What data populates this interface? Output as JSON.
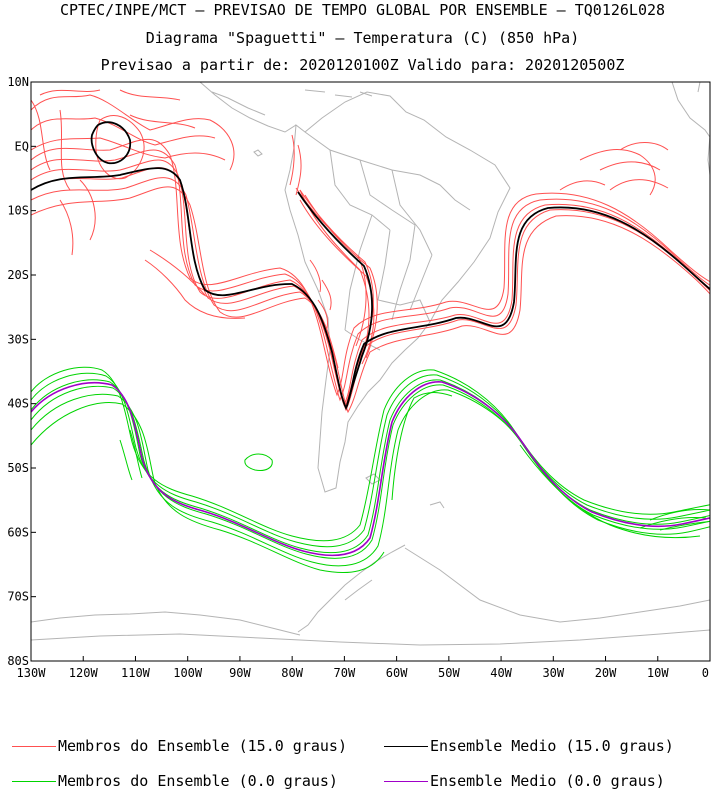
{
  "titles": {
    "line1": "CPTEC/INPE/MCT – PREVISAO DE TEMPO GLOBAL POR ENSEMBLE – TQ0126L028",
    "line2": "Diagrama \"Spaguetti\" – Temperatura (C) (850 hPa)",
    "line3": "Previsao a partir de: 2020120100Z  Valido para: 2020120500Z"
  },
  "map": {
    "lon_range": [
      -130,
      0
    ],
    "lat_range": [
      -80,
      10
    ],
    "lat_ticks": [
      "10N",
      "EQ",
      "10S",
      "20S",
      "30S",
      "40S",
      "50S",
      "60S",
      "70S",
      "80S"
    ],
    "lon_ticks": [
      "130W",
      "120W",
      "110W",
      "100W",
      "90W",
      "80W",
      "70W",
      "60W",
      "50W",
      "40W",
      "30W",
      "20W",
      "10W",
      "0"
    ],
    "coastline_color": "#b4b4b4",
    "members_15_color": "#ff5050",
    "mean_15_color": "#000000",
    "members_0_color": "#00d400",
    "mean_0_color": "#a000c8"
  },
  "legend": {
    "members_15": "Membros do Ensemble (15.0 graus)",
    "mean_15": "Ensemble Medio (15.0 graus)",
    "members_0": "Membros do Ensemble (0.0 graus)",
    "mean_0": "Ensemble Medio (0.0 graus)"
  }
}
